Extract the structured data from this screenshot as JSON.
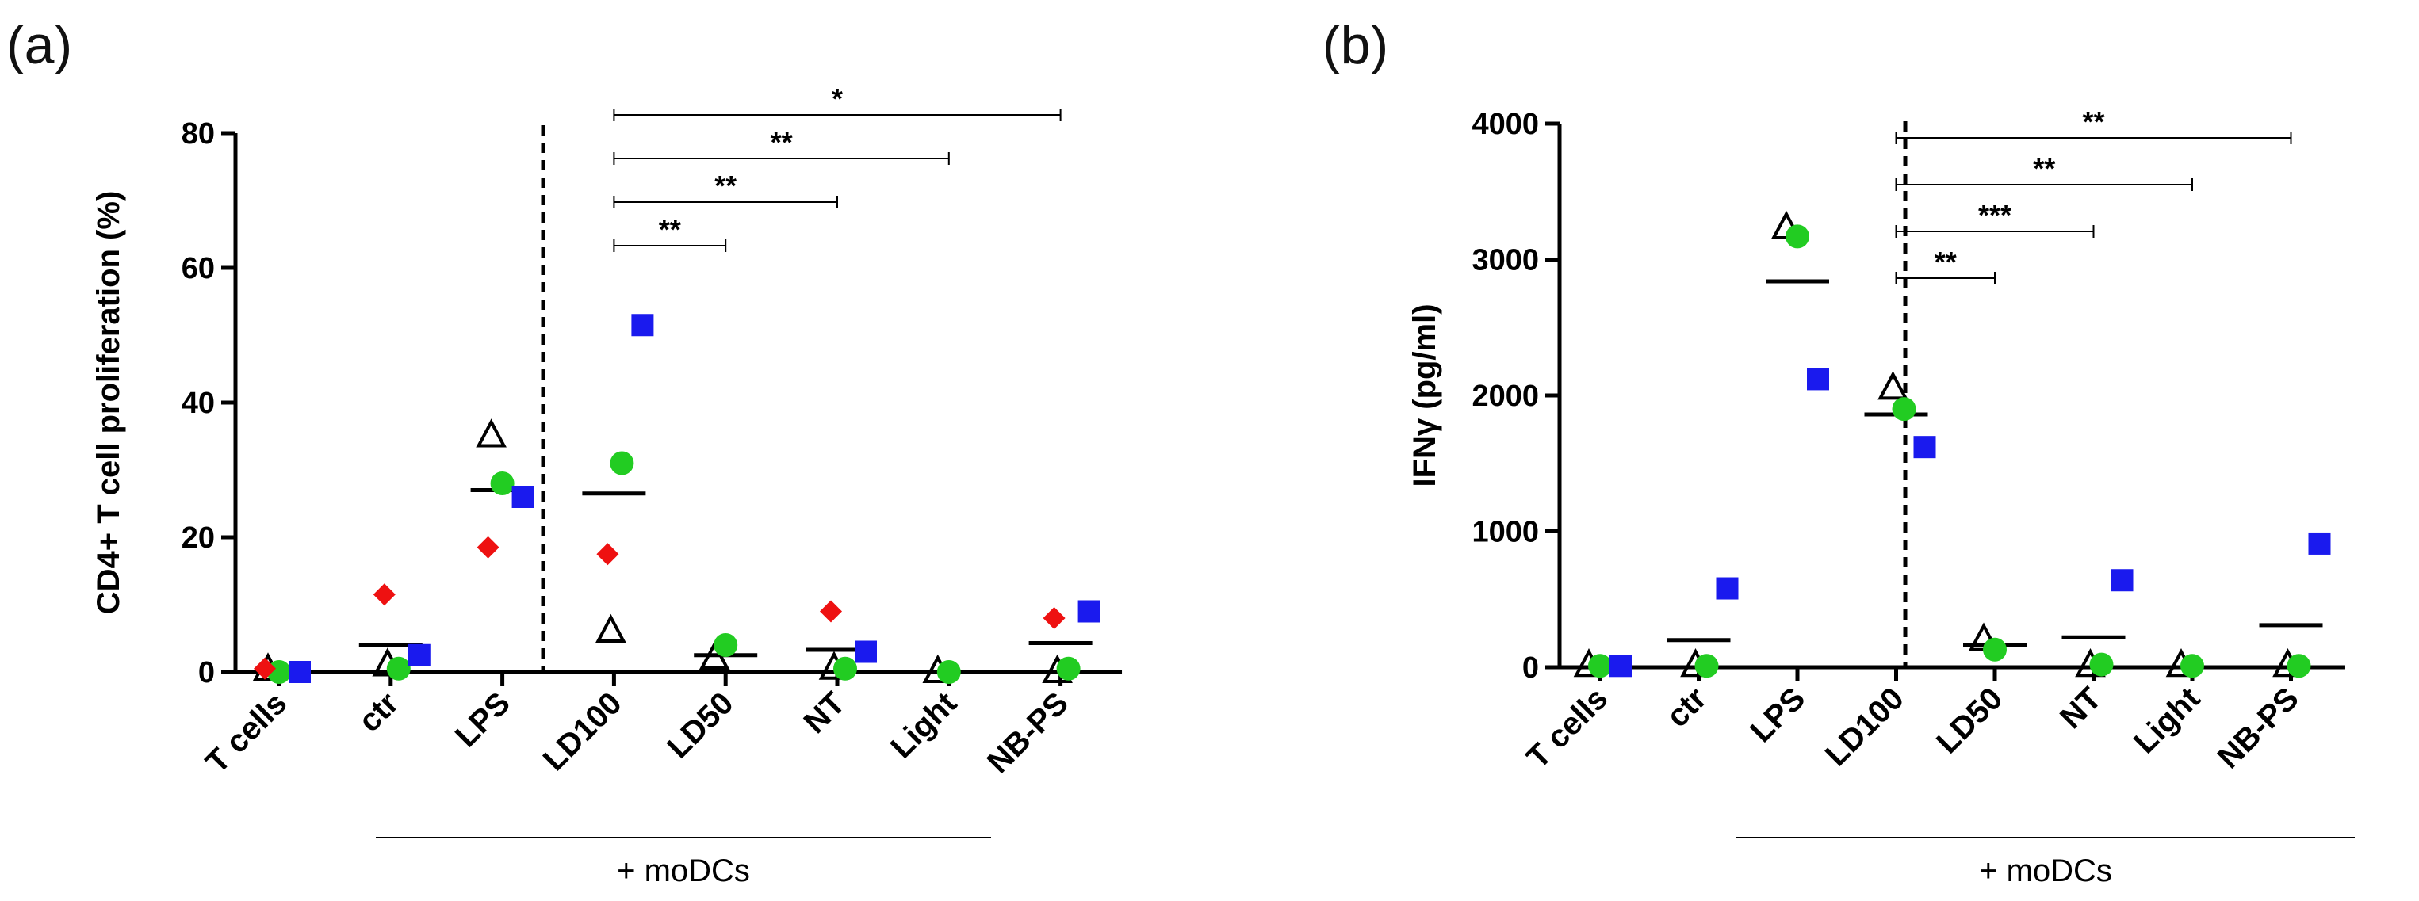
{
  "chart_data": [
    {
      "panel": "(a)",
      "type": "scatter",
      "ylabel": "CD4+ T cell proliferation (%)",
      "ylim": [
        0,
        80
      ],
      "yticks": [
        0,
        20,
        40,
        60,
        80
      ],
      "categories": [
        "T cells",
        "ctr",
        "LPS",
        "LD100",
        "LD50",
        "NT",
        "Light",
        "NB-PS"
      ],
      "group_label": "+ moDCs",
      "separator_after": "LPS",
      "series": [
        {
          "name": "donor-triangle",
          "marker": "open-triangle",
          "color": "#000000",
          "values": [
            0.3,
            1.0,
            35,
            6,
            2,
            0.5,
            0,
            0
          ]
        },
        {
          "name": "donor-circle",
          "marker": "circle",
          "color": "#22cc22",
          "values": [
            0,
            0.5,
            28,
            31,
            4,
            0.5,
            0,
            0.5
          ]
        },
        {
          "name": "donor-square",
          "marker": "square",
          "color": "#1a1aee",
          "values": [
            0,
            2.5,
            26,
            51.5,
            null,
            3,
            null,
            9
          ]
        },
        {
          "name": "donor-diamond",
          "marker": "diamond",
          "color": "#ee1111",
          "values": [
            0.5,
            11.5,
            18.5,
            17.5,
            null,
            9,
            null,
            8
          ]
        }
      ],
      "means": [
        0,
        4,
        27,
        26.5,
        2.5,
        3.3,
        0,
        4.3
      ],
      "comparisons": [
        {
          "from": "LD100",
          "to": "LD50",
          "label": "**"
        },
        {
          "from": "LD100",
          "to": "NT",
          "label": "**"
        },
        {
          "from": "LD100",
          "to": "Light",
          "label": "**"
        },
        {
          "from": "LD100",
          "to": "NB-PS",
          "label": "*"
        }
      ]
    },
    {
      "panel": "(b)",
      "type": "scatter",
      "ylabel": "IFNγ (pg/ml)",
      "ylim": [
        0,
        4000
      ],
      "yticks": [
        0,
        1000,
        2000,
        3000,
        4000
      ],
      "categories": [
        "T cells",
        "ctr",
        "LPS",
        "LD100",
        "LD50",
        "NT",
        "Light",
        "NB-PS"
      ],
      "group_label": "+ moDCs",
      "separator_after": "LPS",
      "series": [
        {
          "name": "donor-triangle",
          "marker": "open-triangle",
          "color": "#000000",
          "values": [
            10,
            10,
            3230,
            2050,
            200,
            10,
            10,
            10
          ]
        },
        {
          "name": "donor-circle",
          "marker": "circle",
          "color": "#22cc22",
          "values": [
            10,
            10,
            3170,
            1900,
            130,
            20,
            10,
            10
          ]
        },
        {
          "name": "donor-square",
          "marker": "square",
          "color": "#1a1aee",
          "values": [
            10,
            580,
            2120,
            1620,
            null,
            640,
            null,
            910
          ]
        }
      ],
      "means": [
        0,
        200,
        2840,
        1860,
        160,
        220,
        0,
        310
      ],
      "comparisons": [
        {
          "from": "LD100",
          "to": "LD50",
          "label": "**"
        },
        {
          "from": "LD100",
          "to": "NT",
          "label": "***"
        },
        {
          "from": "LD100",
          "to": "Light",
          "label": "**"
        },
        {
          "from": "LD100",
          "to": "NB-PS",
          "label": "**"
        }
      ]
    }
  ]
}
